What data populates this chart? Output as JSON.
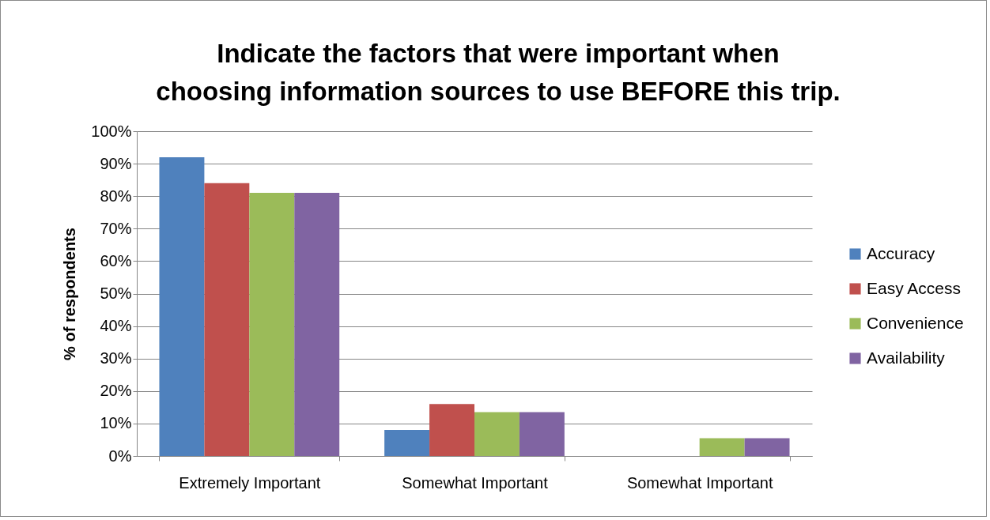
{
  "chart_data": {
    "type": "bar",
    "title": "Indicate the factors that were important when choosing information sources to use BEFORE this trip.",
    "ylabel": "% of respondents",
    "categories": [
      "Extremely Important",
      "Somewhat Important",
      "Somewhat Important"
    ],
    "series": [
      {
        "name": "Accuracy",
        "color": "#4f81bd",
        "values": [
          92,
          8,
          0
        ]
      },
      {
        "name": "Easy Access",
        "color": "#c0504d",
        "values": [
          84,
          16,
          0
        ]
      },
      {
        "name": "Convenience",
        "color": "#9bbb59",
        "values": [
          81,
          13.5,
          5.5
        ]
      },
      {
        "name": "Availability",
        "color": "#8064a2",
        "values": [
          81,
          13.5,
          5.5
        ]
      }
    ],
    "ylim": [
      0,
      100
    ],
    "yticks": [
      {
        "value": 0,
        "label": "0%"
      },
      {
        "value": 10,
        "label": "10%"
      },
      {
        "value": 20,
        "label": "20%"
      },
      {
        "value": 30,
        "label": "30%"
      },
      {
        "value": 40,
        "label": "40%"
      },
      {
        "value": 50,
        "label": "50%"
      },
      {
        "value": 60,
        "label": "60%"
      },
      {
        "value": 70,
        "label": "70%"
      },
      {
        "value": 80,
        "label": "80%"
      },
      {
        "value": 90,
        "label": "90%"
      },
      {
        "value": 100,
        "label": "100%"
      }
    ],
    "grid": "y",
    "legend": "right"
  }
}
